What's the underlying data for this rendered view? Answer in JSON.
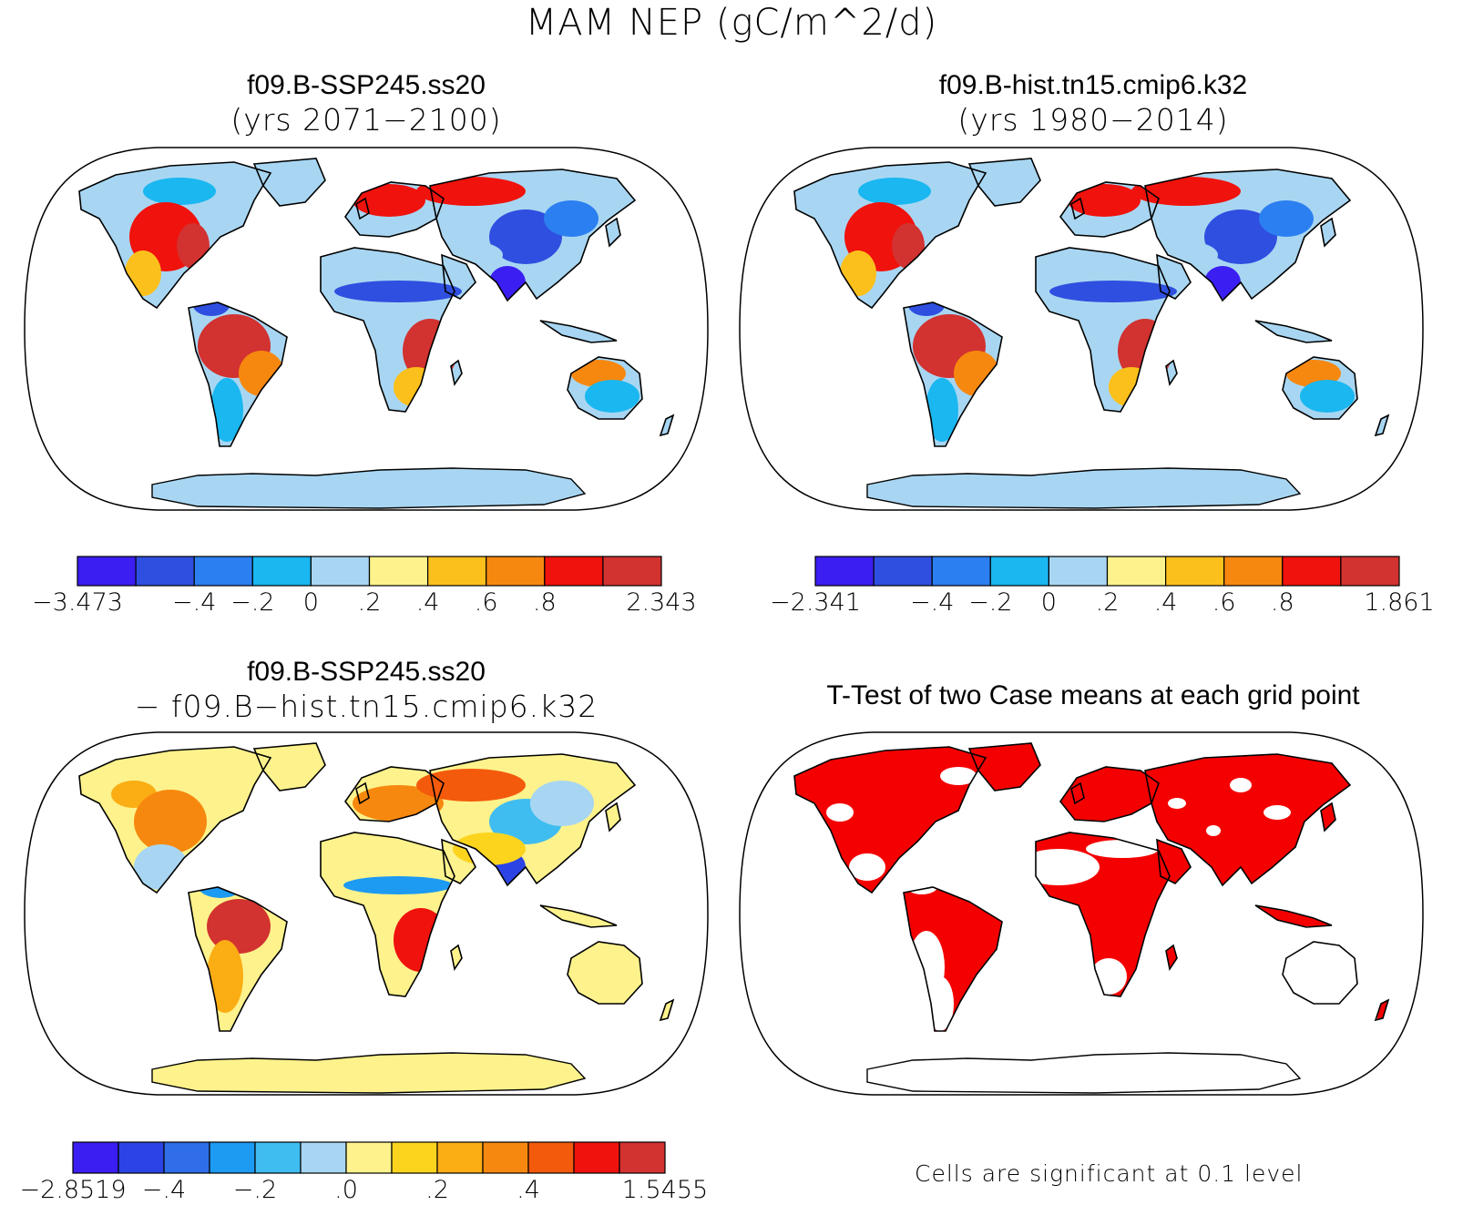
{
  "figure": {
    "title": "MAM NEP (gC/m^2/d)"
  },
  "panels": [
    {
      "id": "case1",
      "title_line1": "f09.B-SSP245.ss20",
      "title_line2": "(yrs 2071−2100)",
      "scheme": "abs",
      "colorbar": {
        "colors": [
          "#3b1ef2",
          "#2f4fe0",
          "#2c7ff0",
          "#1ab7f0",
          "#a8d6f2",
          "#fdf28c",
          "#fcc01c",
          "#f7880f",
          "#f0120c",
          "#d23230"
        ],
        "labels": [
          "−3.473",
          "−.4",
          "−.2",
          "0",
          ".2",
          ".4",
          ".6",
          ".8",
          "2.343"
        ],
        "label_positions": [
          0,
          2,
          3,
          4,
          5,
          6,
          7,
          8,
          10
        ]
      }
    },
    {
      "id": "case2",
      "title_line1": "f09.B-hist.tn15.cmip6.k32",
      "title_line2": "(yrs 1980−2014)",
      "scheme": "abs",
      "colorbar": {
        "colors": [
          "#3b1ef2",
          "#2f4fe0",
          "#2c7ff0",
          "#1ab7f0",
          "#a8d6f2",
          "#fdf28c",
          "#fcc01c",
          "#f7880f",
          "#f0120c",
          "#d23230"
        ],
        "labels": [
          "−2.341",
          "−.4",
          "−.2",
          "0",
          ".2",
          ".4",
          ".6",
          ".8",
          "1.861"
        ],
        "label_positions": [
          0,
          2,
          3,
          4,
          5,
          6,
          7,
          8,
          10
        ]
      }
    },
    {
      "id": "diff",
      "title_line1": "f09.B-SSP245.ss20",
      "title_line2": "− f09.B−hist.tn15.cmip6.k32",
      "scheme": "diff",
      "colorbar": {
        "colors": [
          "#3b1ef2",
          "#2c44e6",
          "#2f6ee8",
          "#1d9af2",
          "#40bdf0",
          "#a8d6f2",
          "#fdf28c",
          "#fcd41e",
          "#fbad14",
          "#f7880f",
          "#f45a0c",
          "#f0120c",
          "#d23230"
        ],
        "labels": [
          "−2.8519",
          "−.4",
          "−.2",
          ".0",
          ".2",
          ".4",
          "1.5455"
        ],
        "label_positions": [
          0,
          2,
          4,
          6,
          8,
          10,
          13
        ]
      }
    },
    {
      "id": "ttest",
      "title_line1": "T-Test of two Case means at each grid point",
      "scheme": "sig",
      "note": "Cells are significant at 0.1 level"
    }
  ],
  "colors": {
    "significant": "#f40000",
    "coast": "#000000",
    "antarctica_case": "#a8d6f2",
    "antarctica_diff": "#fdf28c"
  }
}
